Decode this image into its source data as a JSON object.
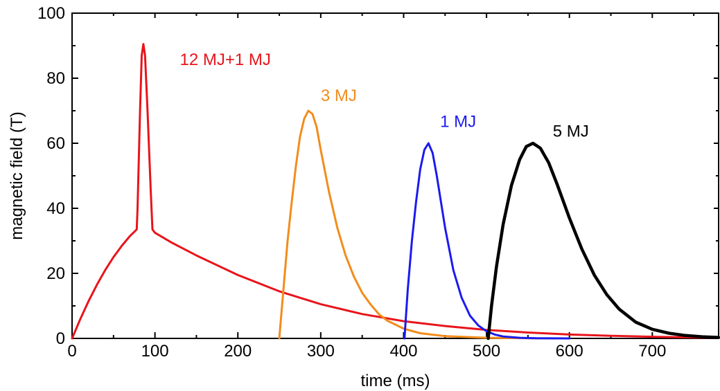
{
  "chart_data": {
    "type": "line",
    "title": "",
    "xlabel": "time (ms)",
    "ylabel": "magnetic field (T)",
    "xlim": [
      0,
      780
    ],
    "ylim": [
      0,
      100
    ],
    "x_ticks": [
      0,
      100,
      200,
      300,
      400,
      500,
      600,
      700
    ],
    "y_ticks": [
      0,
      20,
      40,
      60,
      80,
      100
    ],
    "grid": false,
    "legend": "none",
    "series": [
      {
        "name": "12 MJ+1 MJ",
        "color": "#e8141b",
        "points": [
          [
            0,
            0
          ],
          [
            10,
            6
          ],
          [
            20,
            11.5
          ],
          [
            30,
            16.5
          ],
          [
            40,
            21
          ],
          [
            50,
            25
          ],
          [
            60,
            28.5
          ],
          [
            70,
            31.5
          ],
          [
            76,
            33
          ],
          [
            78,
            33.5
          ],
          [
            79,
            40
          ],
          [
            82,
            70
          ],
          [
            84,
            87
          ],
          [
            86,
            90.5
          ],
          [
            88,
            87
          ],
          [
            91,
            70
          ],
          [
            95,
            45
          ],
          [
            97,
            33.5
          ],
          [
            100,
            32.5
          ],
          [
            120,
            29.5
          ],
          [
            150,
            25.5
          ],
          [
            200,
            19.5
          ],
          [
            250,
            14.5
          ],
          [
            300,
            10.5
          ],
          [
            350,
            7.5
          ],
          [
            400,
            5.3
          ],
          [
            450,
            3.8
          ],
          [
            500,
            2.6
          ],
          [
            550,
            1.8
          ],
          [
            600,
            1.2
          ],
          [
            650,
            0.8
          ],
          [
            700,
            0.5
          ],
          [
            750,
            0.3
          ],
          [
            780,
            0.2
          ]
        ]
      },
      {
        "name": "3 MJ",
        "color": "#f28c1b",
        "points": [
          [
            250,
            0
          ],
          [
            255,
            15
          ],
          [
            260,
            30
          ],
          [
            265,
            42
          ],
          [
            270,
            53
          ],
          [
            275,
            62
          ],
          [
            280,
            67.5
          ],
          [
            285,
            70
          ],
          [
            290,
            69
          ],
          [
            295,
            65
          ],
          [
            300,
            58
          ],
          [
            310,
            45
          ],
          [
            320,
            34
          ],
          [
            330,
            25.5
          ],
          [
            340,
            19
          ],
          [
            350,
            14
          ],
          [
            360,
            10.5
          ],
          [
            370,
            7.5
          ],
          [
            380,
            5.5
          ],
          [
            400,
            3
          ],
          [
            420,
            1.6
          ],
          [
            450,
            0.7
          ],
          [
            500,
            0.2
          ],
          [
            550,
            0.05
          ],
          [
            585,
            0
          ]
        ]
      },
      {
        "name": "1 MJ",
        "color": "#1a1af0",
        "points": [
          [
            401,
            0
          ],
          [
            405,
            15
          ],
          [
            410,
            30
          ],
          [
            415,
            42
          ],
          [
            420,
            52
          ],
          [
            425,
            58
          ],
          [
            430,
            60
          ],
          [
            435,
            57
          ],
          [
            440,
            50
          ],
          [
            445,
            42
          ],
          [
            450,
            34
          ],
          [
            460,
            21
          ],
          [
            470,
            12.5
          ],
          [
            480,
            7
          ],
          [
            490,
            4
          ],
          [
            500,
            2.2
          ],
          [
            510,
            1.2
          ],
          [
            520,
            0.6
          ],
          [
            540,
            0.2
          ],
          [
            560,
            0.05
          ],
          [
            600,
            0
          ]
        ]
      },
      {
        "name": "5 MJ",
        "color": "#000000",
        "points": [
          [
            502,
            0
          ],
          [
            506,
            10
          ],
          [
            512,
            22
          ],
          [
            520,
            35
          ],
          [
            530,
            47
          ],
          [
            540,
            55
          ],
          [
            548,
            59
          ],
          [
            556,
            60
          ],
          [
            565,
            58.5
          ],
          [
            575,
            54
          ],
          [
            585,
            47.5
          ],
          [
            600,
            37
          ],
          [
            615,
            27.5
          ],
          [
            630,
            19.5
          ],
          [
            645,
            13.5
          ],
          [
            660,
            9
          ],
          [
            680,
            5
          ],
          [
            700,
            2.8
          ],
          [
            720,
            1.6
          ],
          [
            740,
            0.9
          ],
          [
            760,
            0.5
          ],
          [
            780,
            0.3
          ]
        ]
      }
    ],
    "annotations": [
      {
        "text": "12 MJ+1 MJ",
        "color": "#e8141b",
        "x": 130,
        "y": 84
      },
      {
        "text": "3 MJ",
        "color": "#f28c1b",
        "x": 300,
        "y": 73
      },
      {
        "text": "1 MJ",
        "color": "#1a1af0",
        "x": 444,
        "y": 65
      },
      {
        "text": "5 MJ",
        "color": "#000000",
        "x": 580,
        "y": 62
      }
    ]
  }
}
